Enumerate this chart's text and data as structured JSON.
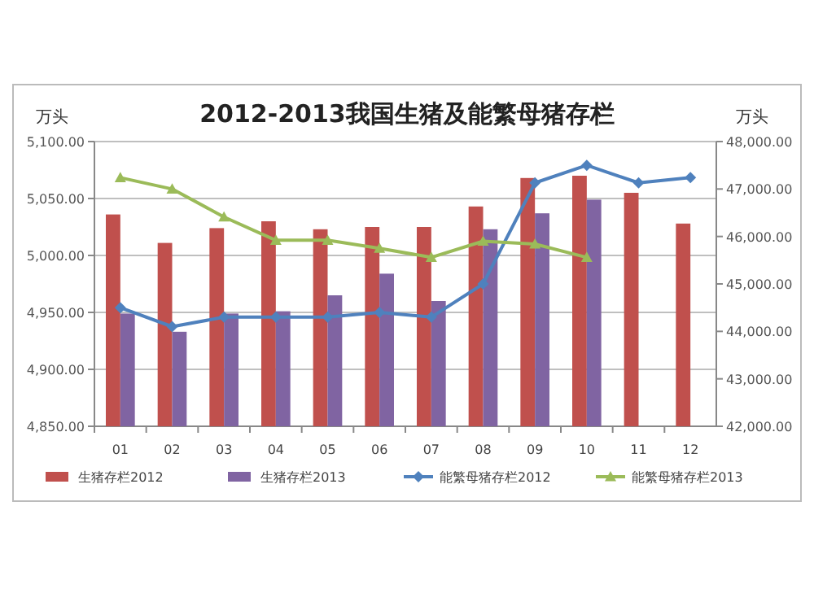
{
  "chart_data": {
    "type": "bar",
    "title": "2012-2013我国生猪及能繁母猪存栏",
    "ylabel": "万头",
    "y2label": "万头",
    "categories": [
      "01",
      "02",
      "03",
      "04",
      "05",
      "06",
      "07",
      "08",
      "09",
      "10",
      "11",
      "12"
    ],
    "series": [
      {
        "name": "生猪存栏2012",
        "color": "#c0504d",
        "values": [
          5036,
          5011,
          5024,
          5030,
          5023,
          5025,
          5025,
          5043,
          5068,
          5070,
          5055,
          5028
        ]
      },
      {
        "name": "生猪存栏2013",
        "color": "#8064a2",
        "values": [
          4949,
          4933,
          4949,
          4951,
          4965,
          4984,
          4960,
          5023,
          5037,
          5049,
          null,
          null
        ]
      },
      {
        "name": "能繁母猪存栏2012",
        "type": "line",
        "axis": "y2",
        "marker": "diamond",
        "color": "#4f81bd",
        "values": [
          44500,
          44100,
          44300,
          44300,
          44300,
          44400,
          44300,
          45000,
          47130,
          47500,
          47130,
          47240
        ]
      },
      {
        "name": "能繁母猪存栏2013",
        "type": "line",
        "axis": "y2",
        "marker": "triangle",
        "color": "#9bbb59",
        "values": [
          47240,
          47000,
          46410,
          45920,
          45920,
          45750,
          45560,
          45900,
          45840,
          45560,
          null,
          null
        ]
      }
    ],
    "ylim": [
      4850,
      5100
    ],
    "yticks": [
      {
        "value": 4850,
        "label": "4,850.00"
      },
      {
        "value": 4900,
        "label": "4,900.00"
      },
      {
        "value": 4950,
        "label": "4,950.00"
      },
      {
        "value": 5000,
        "label": "5,000.00"
      },
      {
        "value": 5050,
        "label": "5,050.00"
      },
      {
        "value": 5100,
        "label": "5,100.00"
      }
    ],
    "y2lim": [
      42000,
      48000
    ],
    "y2ticks": [
      {
        "value": 42000,
        "label": "42,000.00"
      },
      {
        "value": 43000,
        "label": "43,000.00"
      },
      {
        "value": 44000,
        "label": "44,000.00"
      },
      {
        "value": 45000,
        "label": "45,000.00"
      },
      {
        "value": 46000,
        "label": "46,000.00"
      },
      {
        "value": 47000,
        "label": "47,000.00"
      },
      {
        "value": 48000,
        "label": "48,000.00"
      }
    ],
    "grid": "y",
    "legend": "bottom"
  }
}
